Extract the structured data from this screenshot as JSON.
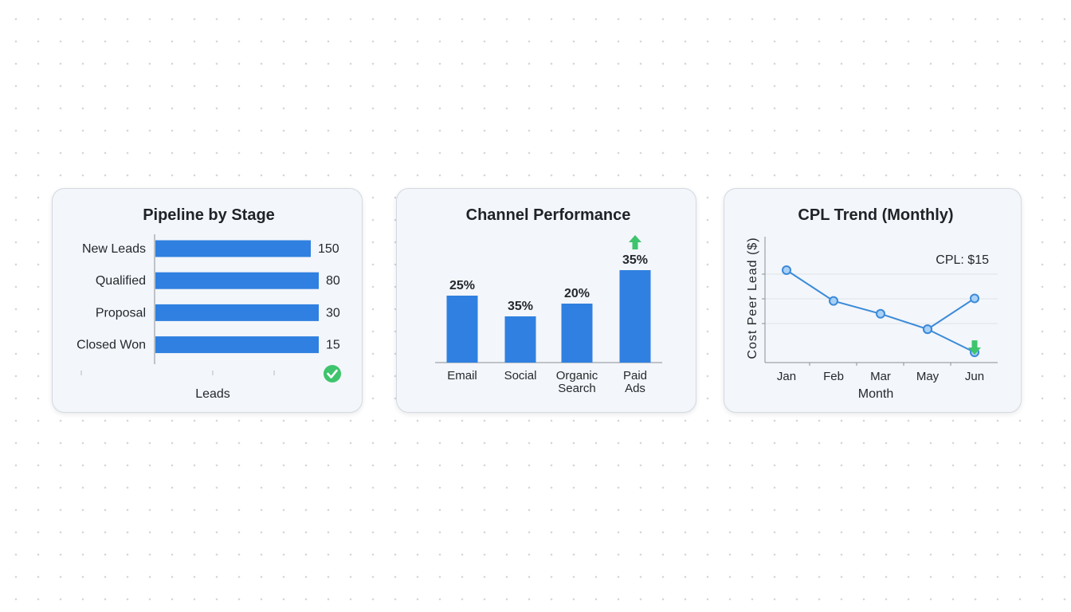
{
  "colors": {
    "bar": "#2f80e0",
    "line": "#3b8ad9",
    "marker_fill": "#a9d0f5",
    "up_arrow": "#3ec46d",
    "down_arrow": "#3ec46d",
    "check": "#3ec46d",
    "card_bg": "#f3f6fa",
    "grid": "#dfe3e8"
  },
  "chart_data": [
    {
      "type": "bar",
      "orientation": "horizontal",
      "title": "Pipeline by Stage",
      "xlabel": "Leads",
      "categories": [
        "New Leads",
        "Qualified",
        "Proposal",
        "Closed Won"
      ],
      "values": [
        150,
        80,
        30,
        15
      ],
      "value_labels": [
        "150",
        "80",
        "30",
        "15"
      ],
      "status_icon": "check-circle-icon"
    },
    {
      "type": "bar",
      "title": "Channel Performance",
      "categories": [
        "Email",
        "Social",
        "Organic Search",
        "Paid Ads"
      ],
      "values": [
        25,
        35,
        20,
        35
      ],
      "value_labels": [
        "25%",
        "35%",
        "20%",
        "35%"
      ],
      "highlight": {
        "category": "Paid Ads",
        "icon": "arrow-up-icon"
      }
    },
    {
      "type": "line",
      "title": "CPL Trend (Monthly)",
      "xlabel": "Month",
      "ylabel": "Cost Peer Lead ($)",
      "categories": [
        "Jan",
        "Feb",
        "Mar",
        "May",
        "Jun"
      ],
      "annotation": "CPL: $15",
      "grid": true,
      "series": [
        {
          "values": [
            36,
            24,
            19,
            13,
            25
          ]
        },
        {
          "values": [
            null,
            null,
            null,
            13,
            4
          ]
        }
      ],
      "end_icon": "arrow-down-icon"
    }
  ]
}
